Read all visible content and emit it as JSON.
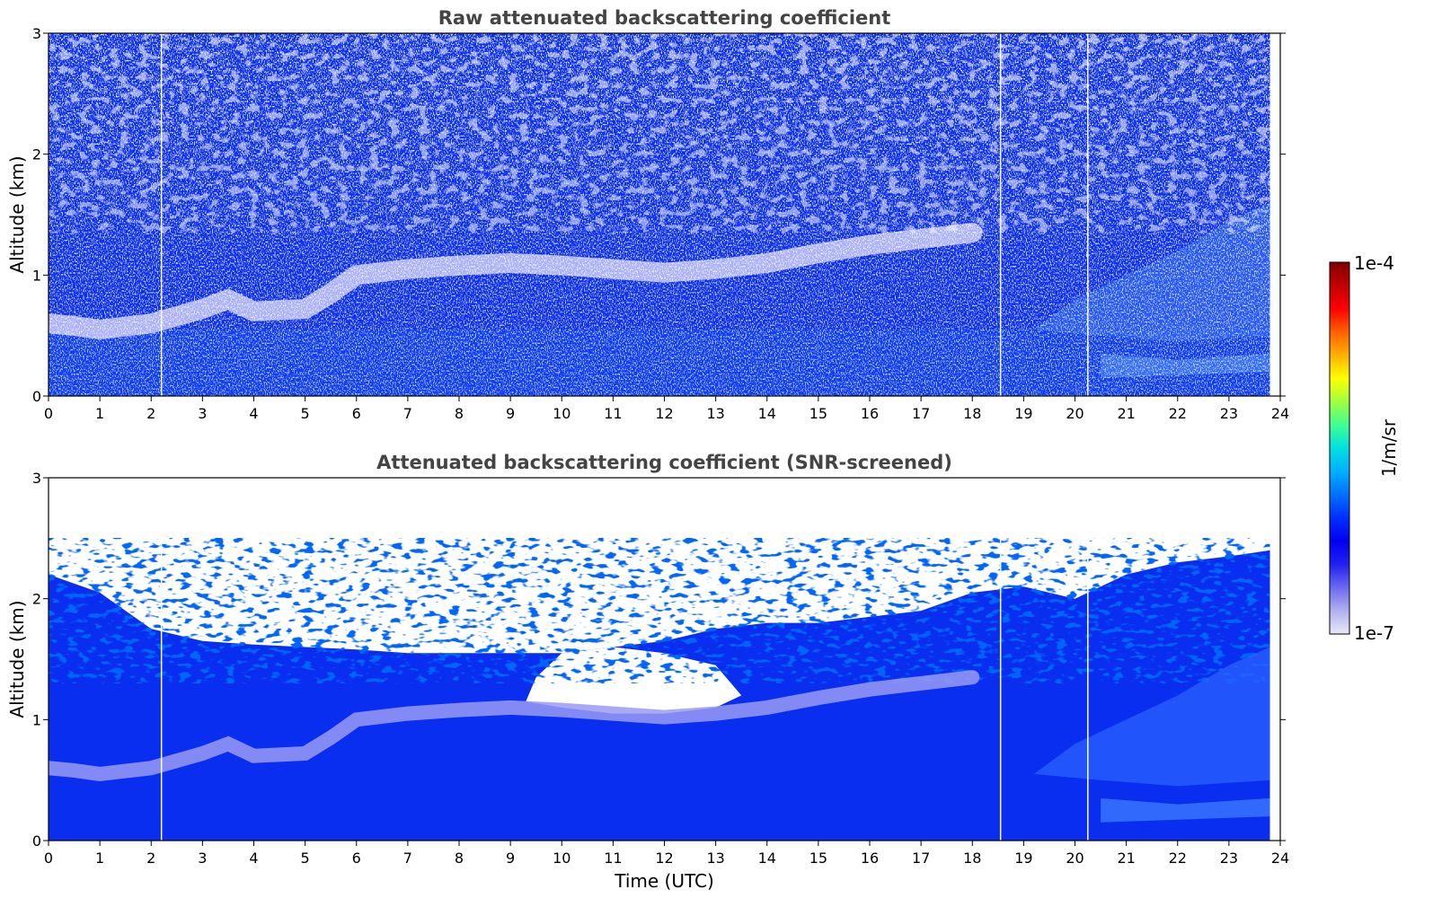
{
  "chart_data": [
    {
      "type": "heatmap",
      "title": "Raw attenuated backscattering coefficient",
      "xlabel": "",
      "ylabel": "Altitude (km)",
      "xlim": [
        0,
        24
      ],
      "ylim": [
        0,
        3
      ],
      "x_ticks": [
        "0",
        "1",
        "2",
        "3",
        "4",
        "5",
        "6",
        "7",
        "8",
        "9",
        "10",
        "11",
        "12",
        "13",
        "14",
        "15",
        "16",
        "17",
        "18",
        "19",
        "20",
        "21",
        "22",
        "23",
        "24"
      ],
      "y_ticks": [
        "0",
        "1",
        "2",
        "3"
      ],
      "data_gaps_utc": [
        2.2,
        18.55,
        20.25
      ],
      "data_end_utc": 23.8,
      "screened": false
    },
    {
      "type": "heatmap",
      "title": "Attenuated backscattering coefficient (SNR-screened)",
      "xlabel": "Time (UTC)",
      "ylabel": "Altitude (km)",
      "xlim": [
        0,
        24
      ],
      "ylim": [
        0,
        3
      ],
      "x_ticks": [
        "0",
        "1",
        "2",
        "3",
        "4",
        "5",
        "6",
        "7",
        "8",
        "9",
        "10",
        "11",
        "12",
        "13",
        "14",
        "15",
        "16",
        "17",
        "18",
        "19",
        "20",
        "21",
        "22",
        "23",
        "24"
      ],
      "y_ticks": [
        "0",
        "1",
        "2",
        "3"
      ],
      "data_gaps_utc": [
        2.2,
        18.55,
        20.25
      ],
      "data_end_utc": 23.8,
      "screened": true
    }
  ],
  "colorbar": {
    "label": "1/m/sr",
    "min_label": "1e-7",
    "max_label": "1e-4",
    "colormap": [
      "#e8e8f8",
      "#b0b0ee",
      "#6a6af0",
      "#2020f0",
      "#0000f0",
      "#0030ff",
      "#0070ff",
      "#00b0ff",
      "#00e0e0",
      "#40ff90",
      "#a0ff40",
      "#ffff00",
      "#ffb000",
      "#ff6000",
      "#ff0000",
      "#c00000",
      "#800000"
    ]
  }
}
